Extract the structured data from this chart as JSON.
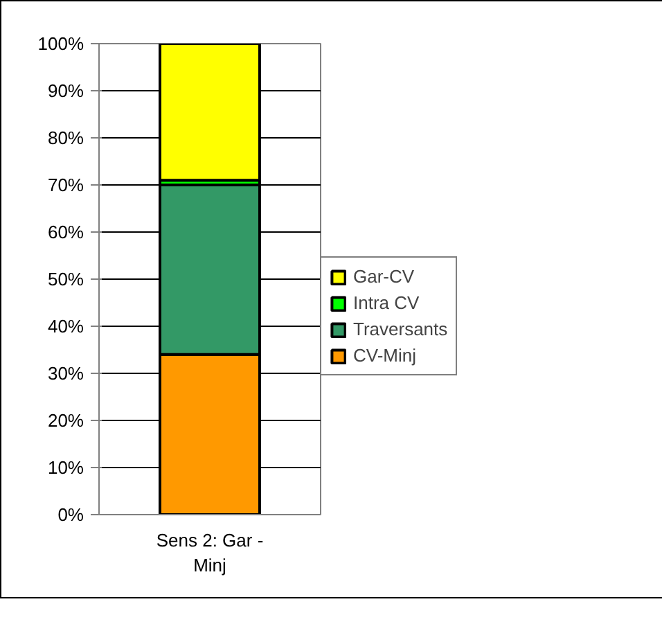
{
  "chart_data": {
    "type": "bar",
    "stacked": true,
    "categories": [
      "Sens 2: Gar - Minj"
    ],
    "series": [
      {
        "name": "CV-Minj",
        "color": "#ff9900",
        "values": [
          34
        ]
      },
      {
        "name": "Traversants",
        "color": "#339966",
        "values": [
          36
        ]
      },
      {
        "name": "Intra CV",
        "color": "#00ff00",
        "values": [
          1
        ]
      },
      {
        "name": "Gar-CV",
        "color": "#ffff00",
        "values": [
          29
        ]
      }
    ],
    "ylim": [
      0,
      100
    ],
    "yticks": [
      {
        "value": 0,
        "label": "0%"
      },
      {
        "value": 10,
        "label": "10%"
      },
      {
        "value": 20,
        "label": "20%"
      },
      {
        "value": 30,
        "label": "30%"
      },
      {
        "value": 40,
        "label": "40%"
      },
      {
        "value": 50,
        "label": "50%"
      },
      {
        "value": 60,
        "label": "60%"
      },
      {
        "value": 70,
        "label": "70%"
      },
      {
        "value": 80,
        "label": "80%"
      },
      {
        "value": 90,
        "label": "90%"
      },
      {
        "value": 100,
        "label": "100%"
      }
    ],
    "grid": "y",
    "legend": "right"
  }
}
